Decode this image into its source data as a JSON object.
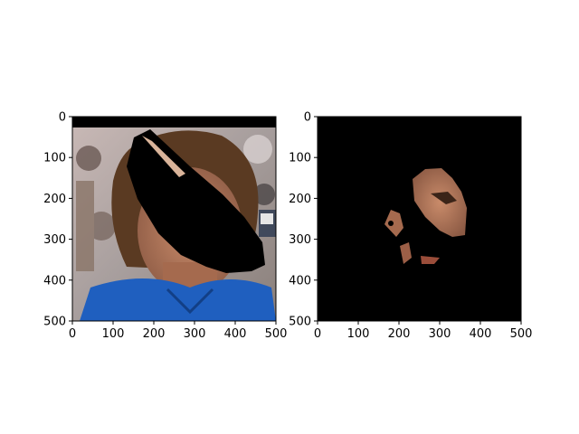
{
  "figure": {
    "panels": [
      {
        "name": "left",
        "description_free": true,
        "x_ticks": [
          "0",
          "100",
          "200",
          "300",
          "400",
          "500"
        ],
        "y_ticks": [
          "0",
          "100",
          "200",
          "300",
          "400",
          "500"
        ]
      },
      {
        "name": "right",
        "x_ticks": [
          "0",
          "100",
          "200",
          "300",
          "400",
          "500"
        ],
        "y_ticks": [
          "0",
          "100",
          "200",
          "300",
          "400",
          "500"
        ]
      }
    ]
  },
  "colors": {
    "mask": "#000000",
    "shirt": "#1f5fbf",
    "skin": "#b87a5a",
    "hair": "#5a3a22",
    "background_crowd": "#b8a9a4"
  },
  "axes": {
    "xlim": [
      0,
      500
    ],
    "ylim": [
      500,
      0
    ],
    "tick_step": 100
  }
}
